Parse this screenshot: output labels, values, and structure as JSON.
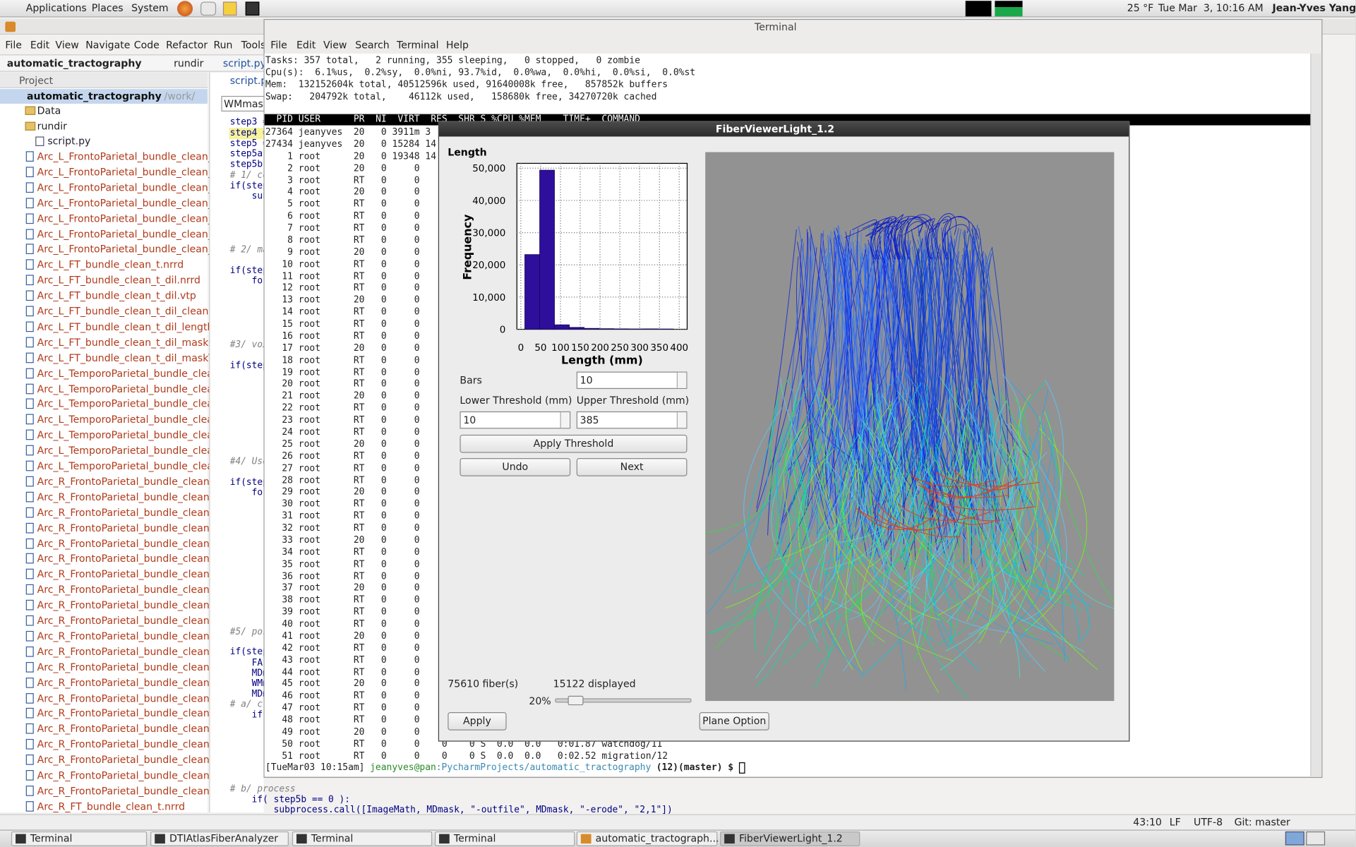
{
  "top_panel": {
    "menus": [
      "Applications",
      "Places",
      "System"
    ],
    "weather": "25 °F",
    "clock": "Tue Mar  3, 10:16 AM",
    "user": "Jean-Yves Yang"
  },
  "pycharm": {
    "menus": [
      "File",
      "Edit",
      "View",
      "Navigate",
      "Code",
      "Refactor",
      "Run",
      "Tools"
    ],
    "breadcrumb": [
      "automatic_tractography",
      "rundir",
      "script.py"
    ],
    "project_label": "Project",
    "root": "automatic_tractography",
    "root_path": "/work/",
    "folders": [
      "Data",
      "rundir"
    ],
    "script": "script.py",
    "files": [
      "Arc_L_FrontoParietal_bundle_clean_",
      "Arc_L_FrontoParietal_bundle_clean_",
      "Arc_L_FrontoParietal_bundle_clean_",
      "Arc_L_FrontoParietal_bundle_clean_",
      "Arc_L_FrontoParietal_bundle_clean_",
      "Arc_L_FrontoParietal_bundle_clean_",
      "Arc_L_FrontoParietal_bundle_clean_",
      "Arc_L_FT_bundle_clean_t.nrrd",
      "Arc_L_FT_bundle_clean_t_dil.nrrd",
      "Arc_L_FT_bundle_clean_t_dil.vtp",
      "Arc_L_FT_bundle_clean_t_dil_cleanE",
      "Arc_L_FT_bundle_clean_t_dil_length",
      "Arc_L_FT_bundle_clean_t_dil_maskC",
      "Arc_L_FT_bundle_clean_t_dil_maskT",
      "Arc_L_TemporoParietal_bundle_clea",
      "Arc_L_TemporoParietal_bundle_clea",
      "Arc_L_TemporoParietal_bundle_clea",
      "Arc_L_TemporoParietal_bundle_clea",
      "Arc_L_TemporoParietal_bundle_clea",
      "Arc_L_TemporoParietal_bundle_clea",
      "Arc_L_TemporoParietal_bundle_clea",
      "Arc_R_FrontoParietal_bundle_clean_",
      "Arc_R_FrontoParietal_bundle_clean_",
      "Arc_R_FrontoParietal_bundle_clean_",
      "Arc_R_FrontoParietal_bundle_clean_",
      "Arc_R_FrontoParietal_bundle_clean_",
      "Arc_R_FrontoParietal_bundle_clean_",
      "Arc_R_FrontoParietal_bundle_clean_",
      "Arc_R_FrontoParietal_bundle_clean_",
      "Arc_R_FrontoParietal_bundle_clean_",
      "Arc_R_FrontoParietal_bundle_clean_",
      "Arc_R_FrontoParietal_bundle_clean_",
      "Arc_R_FrontoParietal_bundle_clean_",
      "Arc_R_FrontoParietal_bundle_clean_",
      "Arc_R_FrontoParietal_bundle_clean_",
      "Arc_R_FrontoParietal_bundle_clean_",
      "Arc_R_FrontoParietal_bundle_clean_",
      "Arc_R_FrontoParietal_bundle_clean_",
      "Arc_R_FrontoParietal_bundle_clean_",
      "Arc_R_FrontoParietal_bundle_clean_",
      "Arc_R_FrontoParietal_bundle_clean_",
      "Arc_R_FrontoParietal_bundle_clean_",
      "Arc_R_FT_bundle_clean_t.nrrd"
    ],
    "editor_tab": "script.py",
    "search": "WMmask",
    "code": [
      "step3 =",
      "step4 =",
      "step5 =",
      "step5a",
      "step5b",
      "# 1/ co",
      "if(step",
      "    sub",
      "# 2/ ma",
      "if(step",
      "    for",
      "#3/ vox",
      "if(step",
      "#4/ Use",
      "if(step",
      "    for",
      "#5/ pos",
      "if(step",
      "    FA",
      "    MDm",
      "    WMm",
      "    MDm",
      "# a/ cr",
      "    if(",
      "# b/ process",
      "    if( step5b == 0 ):",
      "        subprocess.call([ImageMath, MDmask, \"-outfile\", MDmask, \"-erode\", \"2,1\"])"
    ],
    "status": [
      "43:10",
      "LF",
      "UTF-8",
      "Git: master"
    ]
  },
  "terminal": {
    "title": "Terminal",
    "menus": [
      "File",
      "Edit",
      "View",
      "Search",
      "Terminal",
      "Help"
    ],
    "summary": [
      "Tasks: 357 total,   2 running, 355 sleeping,   0 stopped,   0 zombie",
      "Cpu(s):  6.1%us,  0.2%sy,  0.0%ni, 93.7%id,  0.0%wa,  0.0%hi,  0.0%si,  0.0%st",
      "Mem:  132152604k total, 40512596k used, 91640008k free,   857852k buffers",
      "Swap:   204792k total,    46112k used,   158680k free, 34270720k cached"
    ],
    "header": "  PID USER      PR  NI  VIRT  RES  SHR S %CPU %MEM    TIME+  COMMAND",
    "rows": [
      "27364 jeanyves  20   0 3911m 3",
      "27434 jeanyves  20   0 15284 14",
      "    1 root      20   0 19348 14",
      "    2 root      20   0     0",
      "    3 root      RT   0     0",
      "    4 root      20   0     0",
      "    5 root      RT   0     0",
      "    6 root      RT   0     0",
      "    7 root      RT   0     0",
      "    8 root      RT   0     0",
      "    9 root      20   0     0",
      "   10 root      RT   0     0",
      "   11 root      RT   0     0",
      "   12 root      RT   0     0",
      "   13 root      20   0     0",
      "   14 root      RT   0     0",
      "   15 root      RT   0     0",
      "   16 root      RT   0     0",
      "   17 root      20   0     0",
      "   18 root      RT   0     0",
      "   19 root      RT   0     0",
      "   20 root      RT   0     0",
      "   21 root      20   0     0",
      "   22 root      RT   0     0",
      "   23 root      RT   0     0",
      "   24 root      RT   0     0",
      "   25 root      20   0     0",
      "   26 root      RT   0     0",
      "   27 root      RT   0     0",
      "   28 root      RT   0     0",
      "   29 root      20   0     0",
      "   30 root      RT   0     0",
      "   31 root      RT   0     0",
      "   32 root      RT   0     0",
      "   33 root      20   0     0",
      "   34 root      RT   0     0",
      "   35 root      RT   0     0",
      "   36 root      RT   0     0",
      "   37 root      20   0     0",
      "   38 root      RT   0     0",
      "   39 root      RT   0     0",
      "   40 root      RT   0     0",
      "   41 root      20   0     0",
      "   42 root      RT   0     0",
      "   43 root      RT   0     0",
      "   44 root      RT   0     0",
      "   45 root      20   0     0",
      "   46 root      RT   0     0",
      "   47 root      RT   0     0",
      "   48 root      RT   0     0",
      "   49 root      20   0     0",
      "   50 root      RT   0     0    0    0 S  0.0  0.0   0:01.87 watchdog/11",
      "   51 root      RT   0     0    0    0 S  0.0  0.0   0:02.52 migration/12"
    ],
    "prompt": [
      "[TueMar03 10:15am] ",
      "jeanyves@pan",
      ":PycharmProjects/automatic_tractography",
      " (12)(master) $ "
    ]
  },
  "fiberviewer": {
    "title": "FiberViewerLight_1.2",
    "bars_label": "Bars",
    "bars": "10",
    "lower_label": "Lower Threshold (mm)",
    "lower": "10",
    "upper_label": "Upper Threshold (mm)",
    "upper": "385",
    "apply_threshold": "Apply Threshold",
    "undo": "Undo",
    "next": "Next",
    "fibers": "75610 fiber(s)",
    "displayed": "15122 displayed",
    "percent": "20%",
    "apply": "Apply",
    "plane_option": "Plane Option"
  },
  "chart_data": {
    "type": "histogram",
    "title": "Length",
    "x_label": "Length (mm)",
    "y_label": "Frequency",
    "bins": [
      10,
      47.5,
      85,
      122.5,
      160,
      197.5,
      235,
      272.5,
      310,
      347.5,
      385
    ],
    "values": [
      23200,
      49400,
      1400,
      600,
      300,
      200,
      150,
      120,
      140,
      100
    ],
    "color": "#2e0f9c",
    "xlim": [
      -10,
      420
    ],
    "ylim": [
      0,
      51500
    ],
    "xticks": [
      0,
      50,
      100,
      150,
      200,
      250,
      300,
      350,
      400
    ],
    "yticks": [
      0,
      {
        "value": 10000,
        "label": "10,000"
      },
      {
        "value": 20000,
        "label": "20,000"
      },
      {
        "value": 30000,
        "label": "30,000"
      },
      {
        "value": 40000,
        "label": "40,000"
      },
      {
        "value": 50000,
        "label": "50,000"
      }
    ],
    "grid": true
  },
  "taskbar": [
    "Terminal",
    "DTIAtlasFiberAnalyzer",
    "Terminal",
    "Terminal",
    "automatic_tractograph...",
    "FiberViewerLight_1.2"
  ]
}
